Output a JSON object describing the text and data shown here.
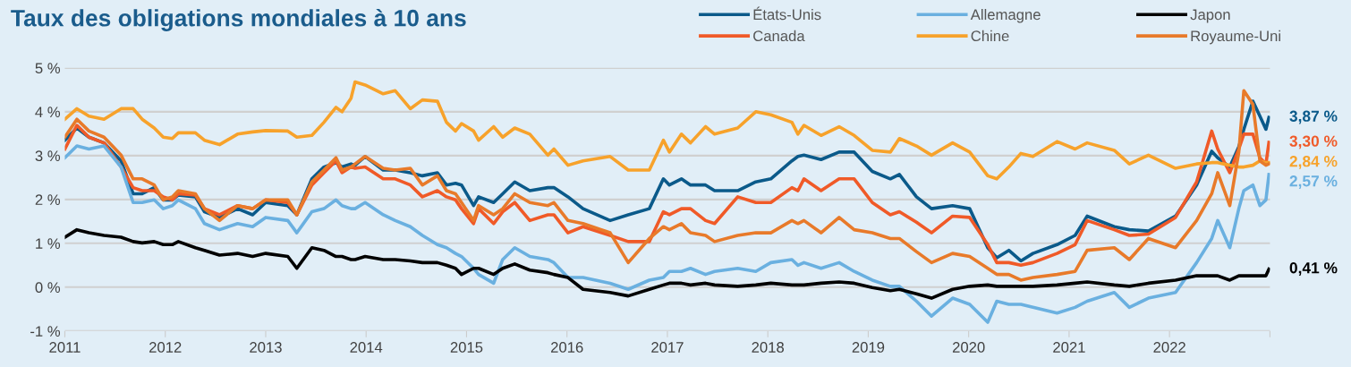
{
  "chart_data": {
    "type": "line",
    "title": "Taux des obligations mondiales à 10 ans",
    "x": [
      2011.0,
      2011.12,
      2011.24,
      2011.39,
      2011.56,
      2011.68,
      2011.77,
      2011.89,
      2011.98,
      2012.07,
      2012.13,
      2012.3,
      2012.39,
      2012.54,
      2012.72,
      2012.87,
      2013.0,
      2013.22,
      2013.31,
      2013.46,
      2013.58,
      2013.7,
      2013.76,
      2013.85,
      2013.89,
      2013.99,
      2014.17,
      2014.29,
      2014.44,
      2014.56,
      2014.71,
      2014.8,
      2014.89,
      2014.95,
      2015.07,
      2015.12,
      2015.27,
      2015.36,
      2015.48,
      2015.63,
      2015.81,
      2015.87,
      2016.01,
      2016.16,
      2016.43,
      2016.61,
      2016.82,
      2016.96,
      2017.02,
      2017.14,
      2017.23,
      2017.38,
      2017.47,
      2017.7,
      2017.88,
      2018.03,
      2018.24,
      2018.3,
      2018.36,
      2018.53,
      2018.71,
      2018.86,
      2019.04,
      2019.22,
      2019.31,
      2019.48,
      2019.63,
      2019.84,
      2020.01,
      2020.19,
      2020.28,
      2020.4,
      2020.52,
      2020.64,
      2020.88,
      2021.06,
      2021.18,
      2021.45,
      2021.6,
      2021.79,
      2022.06,
      2022.27,
      2022.42,
      2022.48,
      2022.6,
      2022.69,
      2022.74,
      2022.83,
      2022.9,
      2022.96,
      2022.99
    ],
    "series": [
      {
        "name": "États-Unis",
        "color": "#0b5a8a",
        "values": [
          3.35,
          3.63,
          3.42,
          3.29,
          2.88,
          2.13,
          2.13,
          2.27,
          1.99,
          1.99,
          2.1,
          2.06,
          1.72,
          1.59,
          1.79,
          1.65,
          1.93,
          1.86,
          1.65,
          2.47,
          2.74,
          2.84,
          2.74,
          2.81,
          2.78,
          2.98,
          2.67,
          2.67,
          2.61,
          2.54,
          2.61,
          2.33,
          2.37,
          2.33,
          1.86,
          2.06,
          1.93,
          2.13,
          2.4,
          2.2,
          2.27,
          2.27,
          2.06,
          1.79,
          1.52,
          1.65,
          1.79,
          2.47,
          2.33,
          2.47,
          2.33,
          2.33,
          2.2,
          2.2,
          2.4,
          2.47,
          2.88,
          2.98,
          3.01,
          2.91,
          3.08,
          3.08,
          2.64,
          2.47,
          2.57,
          2.06,
          1.79,
          1.86,
          1.79,
          0.9,
          0.67,
          0.84,
          0.6,
          0.77,
          0.97,
          1.18,
          1.62,
          1.38,
          1.31,
          1.28,
          1.62,
          2.33,
          3.1,
          2.95,
          2.74,
          3.2,
          3.6,
          4.24,
          3.9,
          3.6,
          3.87
        ],
        "value_labels": [
          null,
          null,
          null,
          null,
          null,
          null,
          null,
          null,
          null,
          null,
          null,
          null,
          null,
          null,
          null,
          null,
          null,
          null,
          null,
          null,
          null,
          null,
          null,
          null,
          null,
          null,
          null,
          null,
          null,
          null,
          null,
          null,
          null,
          null,
          null,
          null,
          null,
          null,
          null,
          null,
          null,
          null,
          null,
          null,
          null,
          null,
          null,
          null,
          null,
          null,
          null,
          null,
          null,
          null,
          null,
          null,
          null,
          null,
          null,
          null,
          null,
          null,
          null,
          null,
          null,
          null,
          null,
          null,
          null,
          null,
          null,
          null,
          null,
          null,
          null,
          null,
          null,
          null,
          null,
          null,
          null,
          null,
          null,
          null,
          null,
          null,
          null,
          null,
          null,
          null,
          "3,87 %"
        ]
      },
      {
        "name": "Canada",
        "color": "#f05a28",
        "values": [
          3.15,
          3.69,
          3.42,
          3.29,
          2.74,
          2.27,
          2.2,
          2.2,
          2.06,
          1.99,
          2.13,
          2.1,
          1.79,
          1.65,
          1.86,
          1.79,
          1.99,
          1.93,
          1.65,
          2.33,
          2.61,
          2.88,
          2.61,
          2.74,
          2.71,
          2.74,
          2.47,
          2.47,
          2.33,
          2.06,
          2.2,
          2.06,
          1.99,
          1.79,
          1.45,
          1.79,
          1.45,
          1.72,
          1.93,
          1.52,
          1.65,
          1.65,
          1.24,
          1.38,
          1.18,
          1.04,
          1.04,
          1.72,
          1.65,
          1.79,
          1.79,
          1.52,
          1.45,
          2.06,
          1.93,
          1.93,
          2.27,
          2.2,
          2.47,
          2.2,
          2.47,
          2.47,
          1.93,
          1.65,
          1.72,
          1.48,
          1.24,
          1.62,
          1.59,
          0.97,
          0.56,
          0.56,
          0.5,
          0.56,
          0.77,
          0.97,
          1.52,
          1.31,
          1.18,
          1.21,
          1.59,
          2.4,
          3.56,
          3.15,
          2.61,
          3.15,
          3.49,
          3.49,
          2.95,
          2.81,
          3.3
        ],
        "value_labels": [
          null,
          null,
          null,
          null,
          null,
          null,
          null,
          null,
          null,
          null,
          null,
          null,
          null,
          null,
          null,
          null,
          null,
          null,
          null,
          null,
          null,
          null,
          null,
          null,
          null,
          null,
          null,
          null,
          null,
          null,
          null,
          null,
          null,
          null,
          null,
          null,
          null,
          null,
          null,
          null,
          null,
          null,
          null,
          null,
          null,
          null,
          null,
          null,
          null,
          null,
          null,
          null,
          null,
          null,
          null,
          null,
          null,
          null,
          null,
          null,
          null,
          null,
          null,
          null,
          null,
          null,
          null,
          null,
          null,
          null,
          null,
          null,
          null,
          null,
          null,
          null,
          null,
          null,
          null,
          null,
          null,
          null,
          null,
          null,
          null,
          null,
          null,
          null,
          null,
          null,
          "3,30 %"
        ]
      },
      {
        "name": "Allemagne",
        "color": "#6ab0e0",
        "values": [
          2.95,
          3.22,
          3.15,
          3.22,
          2.74,
          1.93,
          1.93,
          1.99,
          1.79,
          1.86,
          1.99,
          1.79,
          1.45,
          1.31,
          1.45,
          1.38,
          1.59,
          1.52,
          1.24,
          1.72,
          1.79,
          1.99,
          1.86,
          1.79,
          1.79,
          1.93,
          1.65,
          1.52,
          1.38,
          1.18,
          0.97,
          0.9,
          0.77,
          0.7,
          0.43,
          0.29,
          0.09,
          0.63,
          0.9,
          0.7,
          0.63,
          0.56,
          0.22,
          0.22,
          0.09,
          -0.05,
          0.16,
          0.22,
          0.36,
          0.36,
          0.43,
          0.29,
          0.36,
          0.43,
          0.36,
          0.56,
          0.63,
          0.5,
          0.56,
          0.43,
          0.56,
          0.36,
          0.16,
          0.02,
          0.02,
          -0.32,
          -0.66,
          -0.25,
          -0.39,
          -0.8,
          -0.32,
          -0.39,
          -0.39,
          -0.46,
          -0.59,
          -0.46,
          -0.32,
          -0.12,
          -0.46,
          -0.25,
          -0.12,
          0.56,
          1.11,
          1.52,
          0.9,
          1.79,
          2.2,
          2.33,
          1.86,
          1.99,
          2.57
        ],
        "value_labels": [
          null,
          null,
          null,
          null,
          null,
          null,
          null,
          null,
          null,
          null,
          null,
          null,
          null,
          null,
          null,
          null,
          null,
          null,
          null,
          null,
          null,
          null,
          null,
          null,
          null,
          null,
          null,
          null,
          null,
          null,
          null,
          null,
          null,
          null,
          null,
          null,
          null,
          null,
          null,
          null,
          null,
          null,
          null,
          null,
          null,
          null,
          null,
          null,
          null,
          null,
          null,
          null,
          null,
          null,
          null,
          null,
          null,
          null,
          null,
          null,
          null,
          null,
          null,
          null,
          null,
          null,
          null,
          null,
          null,
          null,
          null,
          null,
          null,
          null,
          null,
          null,
          null,
          null,
          null,
          null,
          null,
          null,
          null,
          null,
          null,
          null,
          null,
          null,
          null,
          null,
          "2,57 %"
        ]
      },
      {
        "name": "Chine",
        "color": "#f7a22b",
        "values": [
          3.83,
          4.07,
          3.9,
          3.83,
          4.07,
          4.07,
          3.83,
          3.63,
          3.42,
          3.39,
          3.52,
          3.52,
          3.35,
          3.25,
          3.49,
          3.54,
          3.57,
          3.56,
          3.42,
          3.46,
          3.76,
          4.1,
          4.0,
          4.31,
          4.68,
          4.61,
          4.41,
          4.48,
          4.07,
          4.27,
          4.24,
          3.76,
          3.56,
          3.73,
          3.56,
          3.35,
          3.66,
          3.42,
          3.63,
          3.49,
          3.01,
          3.15,
          2.78,
          2.88,
          2.98,
          2.67,
          2.67,
          3.35,
          3.08,
          3.49,
          3.29,
          3.66,
          3.49,
          3.63,
          4.0,
          3.93,
          3.76,
          3.49,
          3.69,
          3.46,
          3.66,
          3.46,
          3.12,
          3.08,
          3.39,
          3.22,
          3.01,
          3.29,
          3.08,
          2.54,
          2.47,
          2.74,
          3.05,
          2.98,
          3.32,
          3.15,
          3.29,
          3.12,
          2.81,
          3.01,
          2.71,
          2.81,
          2.84,
          2.84,
          2.78,
          2.74,
          2.74,
          2.78,
          2.88,
          2.84,
          2.84
        ],
        "value_labels": [
          null,
          null,
          null,
          null,
          null,
          null,
          null,
          null,
          null,
          null,
          null,
          null,
          null,
          null,
          null,
          null,
          null,
          null,
          null,
          null,
          null,
          null,
          null,
          null,
          null,
          null,
          null,
          null,
          null,
          null,
          null,
          null,
          null,
          null,
          null,
          null,
          null,
          null,
          null,
          null,
          null,
          null,
          null,
          null,
          null,
          null,
          null,
          null,
          null,
          null,
          null,
          null,
          null,
          null,
          null,
          null,
          null,
          null,
          null,
          null,
          null,
          null,
          null,
          null,
          null,
          null,
          null,
          null,
          null,
          null,
          null,
          null,
          null,
          null,
          null,
          null,
          null,
          null,
          null,
          null,
          null,
          null,
          null,
          null,
          null,
          null,
          null,
          null,
          null,
          null,
          "2,84 %"
        ]
      },
      {
        "name": "Japon",
        "color": "#000000",
        "values": [
          1.14,
          1.31,
          1.24,
          1.18,
          1.14,
          1.04,
          1.01,
          1.04,
          0.97,
          0.97,
          1.04,
          0.9,
          0.84,
          0.73,
          0.77,
          0.7,
          0.77,
          0.7,
          0.43,
          0.9,
          0.84,
          0.7,
          0.7,
          0.63,
          0.63,
          0.7,
          0.63,
          0.63,
          0.6,
          0.56,
          0.56,
          0.5,
          0.43,
          0.29,
          0.43,
          0.43,
          0.29,
          0.43,
          0.53,
          0.39,
          0.33,
          0.29,
          0.22,
          -0.05,
          -0.12,
          -0.2,
          -0.05,
          0.05,
          0.09,
          0.09,
          0.05,
          0.09,
          0.05,
          0.02,
          0.05,
          0.09,
          0.05,
          0.05,
          0.05,
          0.09,
          0.12,
          0.09,
          -0.01,
          -0.08,
          -0.05,
          -0.15,
          -0.25,
          -0.05,
          0.02,
          0.05,
          0.02,
          0.02,
          0.02,
          0.02,
          0.05,
          0.09,
          0.12,
          0.05,
          0.02,
          0.09,
          0.16,
          0.26,
          0.26,
          0.26,
          0.16,
          0.26,
          0.26,
          0.26,
          0.26,
          0.26,
          0.41
        ],
        "value_labels": [
          null,
          null,
          null,
          null,
          null,
          null,
          null,
          null,
          null,
          null,
          null,
          null,
          null,
          null,
          null,
          null,
          null,
          null,
          null,
          null,
          null,
          null,
          null,
          null,
          null,
          null,
          null,
          null,
          null,
          null,
          null,
          null,
          null,
          null,
          null,
          null,
          null,
          null,
          null,
          null,
          null,
          null,
          null,
          null,
          null,
          null,
          null,
          null,
          null,
          null,
          null,
          null,
          null,
          null,
          null,
          null,
          null,
          null,
          null,
          null,
          null,
          null,
          null,
          null,
          null,
          null,
          null,
          null,
          null,
          null,
          null,
          null,
          null,
          null,
          null,
          null,
          null,
          null,
          null,
          null,
          null,
          null,
          null,
          null,
          null,
          null,
          null,
          null,
          null,
          null,
          "0,41 %"
        ]
      },
      {
        "name": "Royaume-Uni",
        "color": "#e87a2a",
        "values": [
          3.42,
          3.83,
          3.56,
          3.42,
          3.01,
          2.47,
          2.47,
          2.33,
          1.99,
          2.06,
          2.2,
          2.13,
          1.79,
          1.52,
          1.86,
          1.79,
          1.99,
          1.99,
          1.65,
          2.4,
          2.67,
          2.95,
          2.67,
          2.74,
          2.81,
          2.98,
          2.71,
          2.67,
          2.71,
          2.33,
          2.54,
          2.2,
          2.13,
          1.93,
          1.52,
          1.86,
          1.65,
          1.79,
          2.13,
          1.93,
          1.86,
          1.93,
          1.52,
          1.45,
          1.24,
          0.56,
          1.11,
          1.38,
          1.31,
          1.45,
          1.24,
          1.18,
          1.04,
          1.18,
          1.24,
          1.24,
          1.52,
          1.45,
          1.52,
          1.24,
          1.59,
          1.31,
          1.24,
          1.11,
          1.11,
          0.81,
          0.56,
          0.77,
          0.7,
          0.43,
          0.29,
          0.29,
          0.16,
          0.22,
          0.29,
          0.36,
          0.84,
          0.9,
          0.63,
          1.11,
          0.9,
          1.52,
          2.13,
          2.61,
          1.86,
          3.08,
          4.48,
          4.17,
          2.88,
          2.78,
          2.81
        ]
      }
    ],
    "xlim": [
      2011,
      2023
    ],
    "xticks": [
      2011,
      2012,
      2013,
      2014,
      2015,
      2016,
      2017,
      2018,
      2019,
      2020,
      2021,
      2022,
      {
        "value": 2023,
        "label": null
      }
    ],
    "ylim": [
      -1,
      5
    ],
    "yticks": [
      {
        "value": -1,
        "label": "-1 %"
      },
      {
        "value": 0,
        "label": "0 %"
      },
      {
        "value": 1,
        "label": "1 %"
      },
      {
        "value": 2,
        "label": "2 %"
      },
      {
        "value": 3,
        "label": "3 %"
      },
      {
        "value": 4,
        "label": "4 %"
      },
      {
        "value": 5,
        "label": "5 %"
      }
    ],
    "grid": "y",
    "legend": "top right",
    "marker": "none",
    "line_style": "solid"
  }
}
